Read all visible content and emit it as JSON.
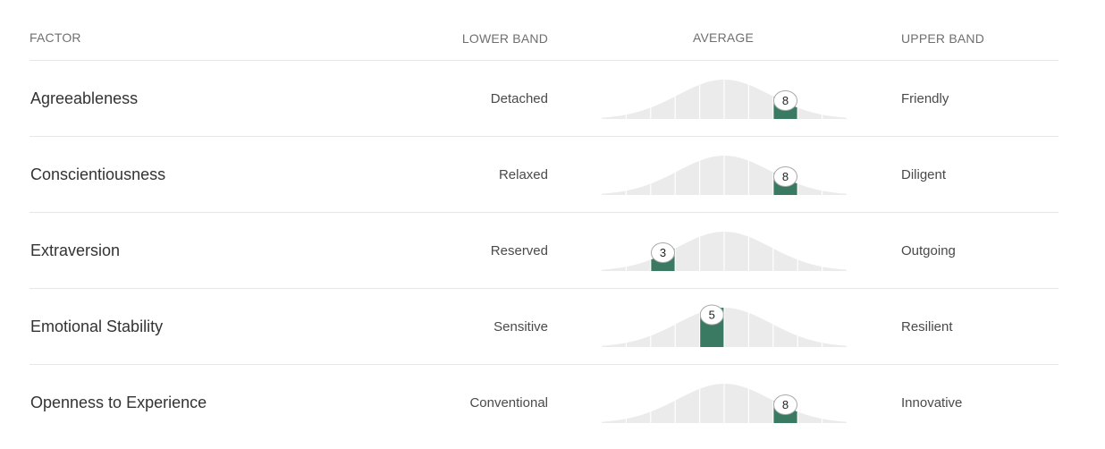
{
  "header": {
    "factor": "FACTOR",
    "lower_band": "LOWER BAND",
    "average": "AVERAGE",
    "upper_band": "UPPER BAND"
  },
  "colors": {
    "curve_fill": "#ebebeb",
    "highlight": "#3b7a62",
    "divider": "#ffffff"
  },
  "gauge": {
    "min": 1,
    "max": 10
  },
  "rows": [
    {
      "factor": "Agreeableness",
      "lower": "Detached",
      "upper": "Friendly",
      "score": 8
    },
    {
      "factor": "Conscientiousness",
      "lower": "Relaxed",
      "upper": "Diligent",
      "score": 8
    },
    {
      "factor": "Extraversion",
      "lower": "Reserved",
      "upper": "Outgoing",
      "score": 3
    },
    {
      "factor": "Emotional Stability",
      "lower": "Sensitive",
      "upper": "Resilient",
      "score": 5
    },
    {
      "factor": "Openness to Experience",
      "lower": "Conventional",
      "upper": "Innovative",
      "score": 8
    }
  ]
}
